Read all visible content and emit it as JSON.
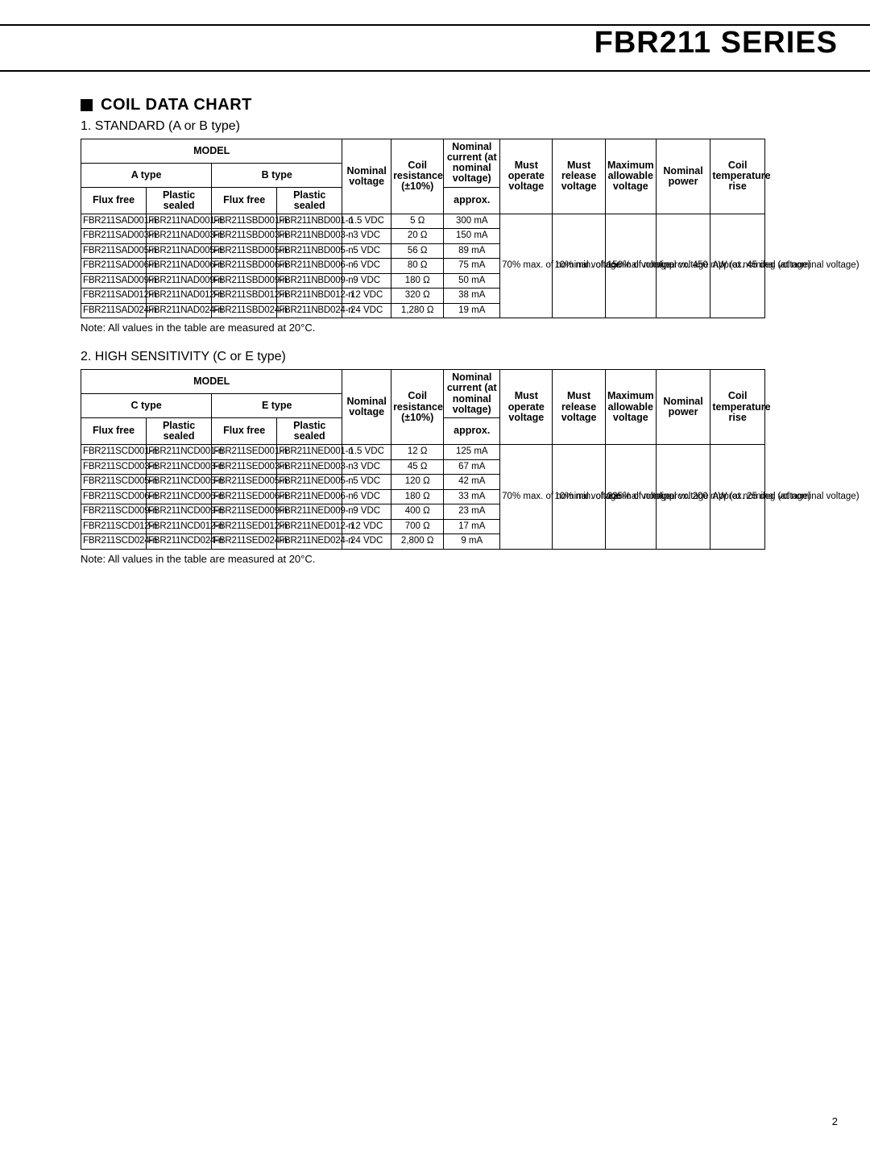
{
  "page": {
    "header_title": "FBR211 SERIES",
    "page_number": "2"
  },
  "section": {
    "bullet_title": "COIL DATA CHART"
  },
  "table1": {
    "subtitle": "1. STANDARD (A or B type)",
    "note": "Note:  All values in the table are measured at 20°C.",
    "headers": {
      "model": "MODEL",
      "typeA": "A type",
      "typeB": "B type",
      "flux_free": "Flux free",
      "plastic_sealed": "Plastic sealed",
      "nominal_voltage": "Nominal voltage",
      "coil_resistance": "Coil resistance (±10%)",
      "nominal_current": "Nominal current (at nominal voltage)",
      "approx": "approx.",
      "must_operate": "Must operate voltage",
      "must_release": "Must release voltage",
      "max_allowable": "Maximum allowable voltage",
      "nominal_power": "Nominal power",
      "temp_rise": "Coil temperature rise"
    },
    "spanned": {
      "must_operate": "70% max. of nominal voltage",
      "must_release": "10% min. of nominal voltage",
      "max_allowable": "150% of nominal voltage",
      "nominal_power": "Approx. 450 mW (at nominal voltage)",
      "temp_rise": "Approx. 45 deg (at nominal voltage)"
    },
    "rows": [
      {
        "m": [
          "FBR211SAD001-n",
          "FBR211NAD001-n",
          "FBR211SBD001-n",
          "FBR211NBD001-n"
        ],
        "nv": "1.5 VDC",
        "res": "5 Ω",
        "cur": "300 mA"
      },
      {
        "m": [
          "FBR211SAD003-n",
          "FBR211NAD003-n",
          "FBR211SBD003-n",
          "FBR211NBD003-n"
        ],
        "nv": "3 VDC",
        "res": "20 Ω",
        "cur": "150 mA"
      },
      {
        "m": [
          "FBR211SAD005-n",
          "FBR211NAD005-n",
          "FBR211SBD005-n",
          "FBR211NBD005-n"
        ],
        "nv": "5 VDC",
        "res": "56 Ω",
        "cur": "89 mA"
      },
      {
        "m": [
          "FBR211SAD006-n",
          "FBR211NAD006-n",
          "FBR211SBD006-n",
          "FBR211NBD006-n"
        ],
        "nv": "6 VDC",
        "res": "80 Ω",
        "cur": "75 mA"
      },
      {
        "m": [
          "FBR211SAD009-n",
          "FBR211NAD009-n",
          "FBR211SBD009-n",
          "FBR211NBD009-n"
        ],
        "nv": "9 VDC",
        "res": "180 Ω",
        "cur": "50 mA"
      },
      {
        "m": [
          "FBR211SAD012-n",
          "FBR211NAD012-n",
          "FBR211SBD012-n",
          "FBR211NBD012-n"
        ],
        "nv": "12 VDC",
        "res": "320 Ω",
        "cur": "38 mA"
      },
      {
        "m": [
          "FBR211SAD024-n",
          "FBR211NAD024-n",
          "FBR211SBD024-n",
          "FBR211NBD024-n"
        ],
        "nv": "24 VDC",
        "res": "1,280 Ω",
        "cur": "19 mA"
      }
    ]
  },
  "table2": {
    "subtitle": "2. HIGH SENSITIVITY (C or E type)",
    "note": "Note:  All values in the table are measured at 20°C.",
    "headers": {
      "model": "MODEL",
      "typeC": "C type",
      "typeE": "E type",
      "flux_free": "Flux free",
      "plastic_sealed": "Plastic sealed",
      "nominal_voltage": "Nominal voltage",
      "coil_resistance": "Coil resistance (±10%)",
      "nominal_current": "Nominal current (at nominal voltage)",
      "approx": "approx.",
      "must_operate": "Must operate voltage",
      "must_release": "Must release voltage",
      "max_allowable": "Maximum allowable voltage",
      "nominal_power": "Nominal power",
      "temp_rise": "Coil temperature rise"
    },
    "spanned": {
      "must_operate": "70% max. of nominal voltage",
      "must_release": "10% min. of nominal voltage",
      "max_allowable": "225% of nominal voltage",
      "nominal_power": "Approx. 200 mW (at nominal voltage)",
      "temp_rise": "Approx. 25 deg (at nominal voltage)"
    },
    "rows": [
      {
        "m": [
          "FBR211SCD001-n",
          "FBR211NCD001-n",
          "FBR211SED001-n",
          "FBR211NED001-n"
        ],
        "nv": "1.5 VDC",
        "res": "12 Ω",
        "cur": "125 mA"
      },
      {
        "m": [
          "FBR211SCD003-n",
          "FBR211NCD003-n",
          "FBR211SED003-n",
          "FBR211NED003-n"
        ],
        "nv": "3 VDC",
        "res": "45 Ω",
        "cur": "67 mA"
      },
      {
        "m": [
          "FBR211SCD005-n",
          "FBR211NCD005-n",
          "FBR211SED005-n",
          "FBR211NED005-n"
        ],
        "nv": "5 VDC",
        "res": "120 Ω",
        "cur": "42 mA"
      },
      {
        "m": [
          "FBR211SCD006-n",
          "FBR211NCD006-n",
          "FBR211SED006-n",
          "FBR211NED006-n"
        ],
        "nv": "6 VDC",
        "res": "180 Ω",
        "cur": "33 mA"
      },
      {
        "m": [
          "FBR211SCD009-n",
          "FBR211NCD009-n",
          "FBR211SED009-n",
          "FBR211NED009-n"
        ],
        "nv": "9 VDC",
        "res": "400 Ω",
        "cur": "23 mA"
      },
      {
        "m": [
          "FBR211SCD012-n",
          "FBR211NCD012-n",
          "FBR211SED012-n",
          "FBR211NED012-n"
        ],
        "nv": "12 VDC",
        "res": "700 Ω",
        "cur": "17 mA"
      },
      {
        "m": [
          "FBR211SCD024-n",
          "FBR211NCD024-n",
          "FBR211SED024-n",
          "FBR211NED024-n"
        ],
        "nv": "24 VDC",
        "res": "2,800 Ω",
        "cur": "9 mA"
      }
    ]
  }
}
